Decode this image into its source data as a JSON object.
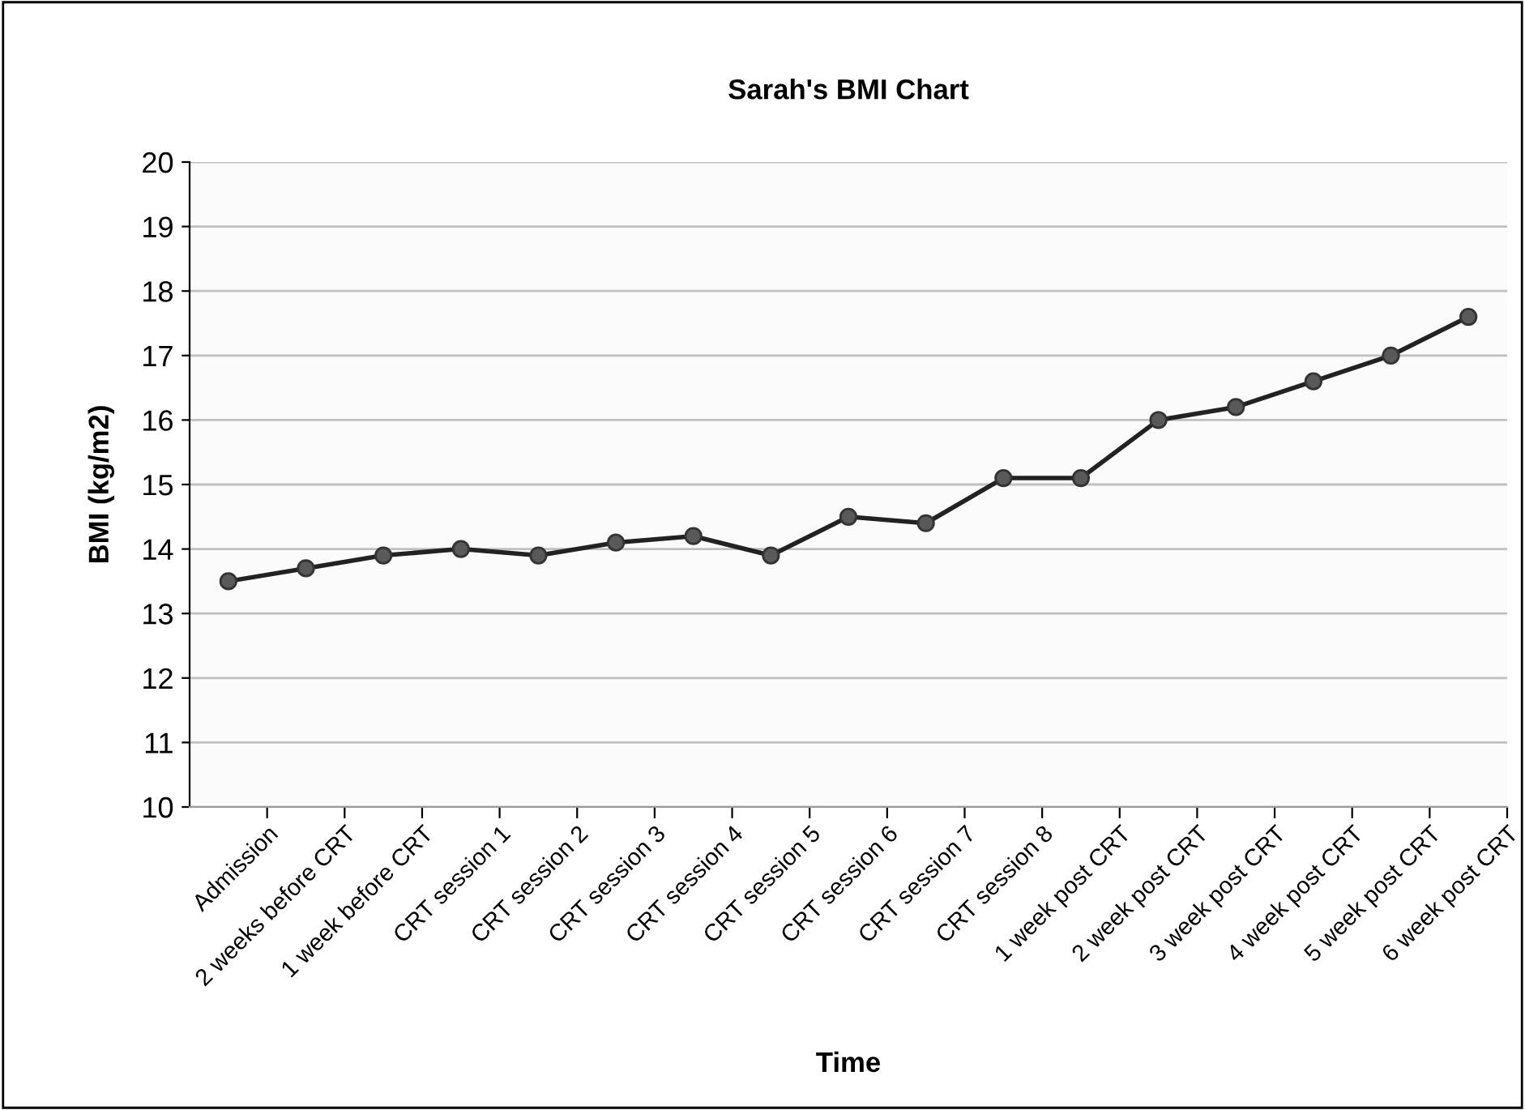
{
  "chart_data": {
    "type": "line",
    "title": "Sarah's BMI Chart",
    "xlabel": "Time",
    "ylabel": "BMI (kg/m2)",
    "categories": [
      "Admission",
      "2 weeks before CRT",
      "1 week before CRT",
      "CRT session 1",
      "CRT session 2",
      "CRT session 3",
      "CRT session 4",
      "CRT session 5",
      "CRT session 6",
      "CRT session 7",
      "CRT session 8",
      "1 week post CRT",
      "2 week post CRT",
      "3 week post CRT",
      "4 week post CRT",
      "5 week post CRT",
      "6 week post CRT"
    ],
    "series": [
      {
        "color": "#595959",
        "values": [
          13.5,
          13.7,
          13.9,
          14.0,
          13.9,
          14.1,
          14.2,
          13.9,
          14.5,
          14.4,
          15.1,
          15.1,
          16.0,
          16.2,
          16.6,
          17.0,
          17.6
        ]
      }
    ],
    "ylim": [
      10,
      20
    ],
    "yticks": [
      10,
      11,
      12,
      13,
      14,
      15,
      16,
      17,
      18,
      19,
      20
    ],
    "grid": "y",
    "marker": "circle",
    "line_style": "solid",
    "legend": false
  }
}
